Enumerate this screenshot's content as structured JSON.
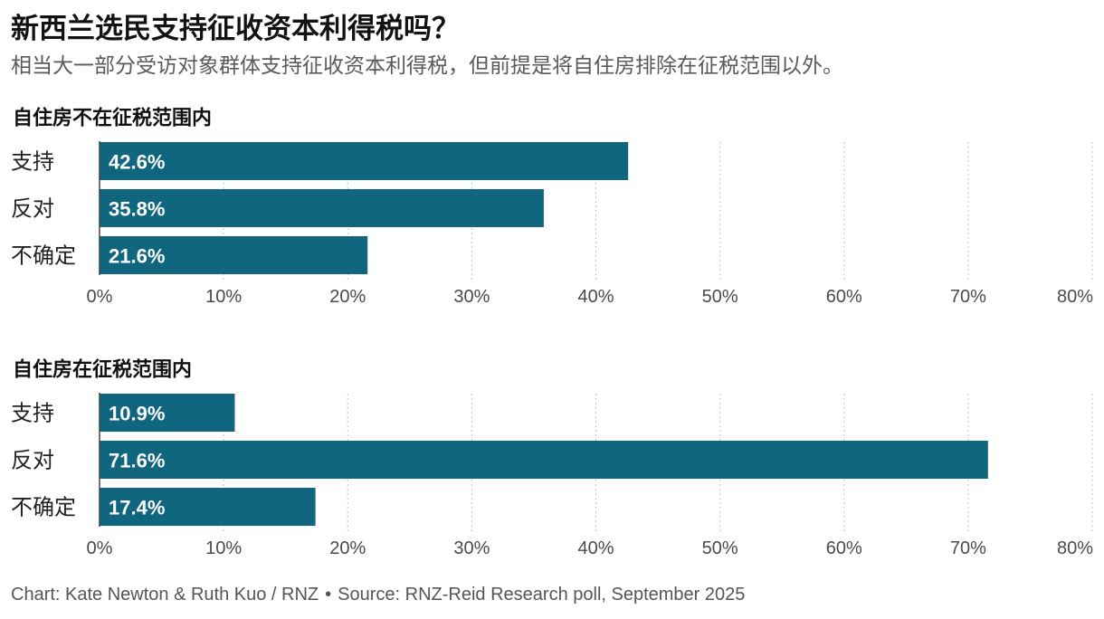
{
  "title": "新西兰选民支持征收资本利得税吗？",
  "subtitle": "相当大一部分受访对象群体支持征收资本利得税，但前提是将自住房排除在征税范围以外。",
  "colors": {
    "bar": "#10657f"
  },
  "chart_data": [
    {
      "type": "bar",
      "orientation": "horizontal",
      "title": "自住房不在征税范围内",
      "categories": [
        "支持",
        "反对",
        "不确定"
      ],
      "values": [
        42.6,
        35.8,
        21.6
      ],
      "value_labels": [
        "42.6%",
        "35.8%",
        "21.6%"
      ],
      "xlim": [
        0,
        80
      ],
      "xticks": [
        0,
        10,
        20,
        30,
        40,
        50,
        60,
        70,
        80
      ],
      "xtick_labels": [
        "0%",
        "10%",
        "20%",
        "30%",
        "40%",
        "50%",
        "60%",
        "70%",
        "80%"
      ],
      "grid": true
    },
    {
      "type": "bar",
      "orientation": "horizontal",
      "title": "自住房在征税范围内",
      "categories": [
        "支持",
        "反对",
        "不确定"
      ],
      "values": [
        10.9,
        71.6,
        17.4
      ],
      "value_labels": [
        "10.9%",
        "71.6%",
        "17.4%"
      ],
      "xlim": [
        0,
        80
      ],
      "xticks": [
        0,
        10,
        20,
        30,
        40,
        50,
        60,
        70,
        80
      ],
      "xtick_labels": [
        "0%",
        "10%",
        "20%",
        "30%",
        "40%",
        "50%",
        "60%",
        "70%",
        "80%"
      ],
      "grid": true
    }
  ],
  "footer": {
    "credit": "Chart: Kate Newton & Ruth Kuo / RNZ",
    "separator": "•",
    "source": "Source: RNZ-Reid Research poll, September 2025"
  }
}
